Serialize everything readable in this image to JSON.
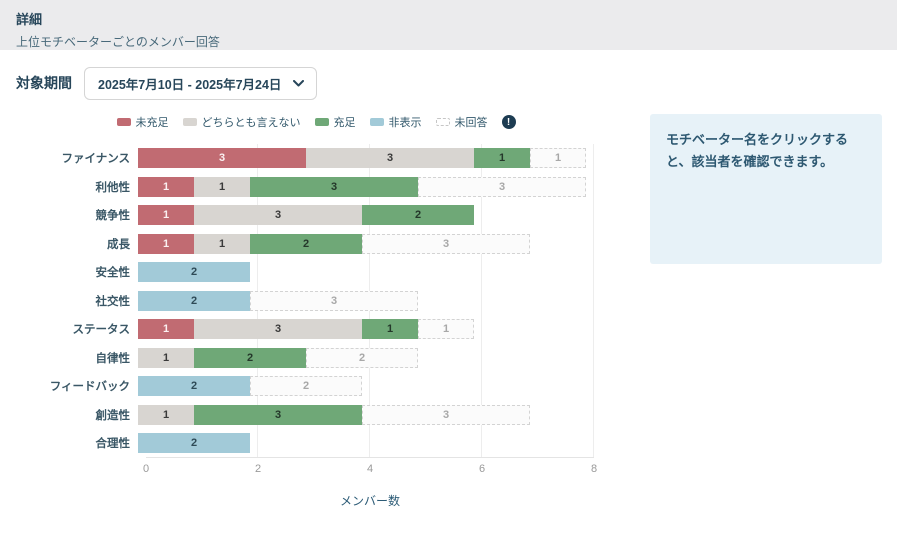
{
  "header": {
    "title": "詳細",
    "subtitle": "上位モチベーターごとのメンバー回答"
  },
  "period": {
    "label": "対象期間",
    "value": "2025年7月10日 - 2025年7月24日"
  },
  "legend": [
    {
      "key": "unmet",
      "label": "未充足",
      "color": "#c16b72"
    },
    {
      "key": "neutral",
      "label": "どちらとも言えない",
      "color": "#d8d5d1"
    },
    {
      "key": "met",
      "label": "充足",
      "color": "#6fa877"
    },
    {
      "key": "hidden",
      "label": "非表示",
      "color": "#a2cad8"
    },
    {
      "key": "noanswer",
      "label": "未回答",
      "color": "#fbfbfb",
      "border": "dashed"
    }
  ],
  "legend_info": {
    "icon_glyph": "!"
  },
  "chart_data": {
    "type": "bar",
    "orientation": "horizontal",
    "stacked": true,
    "categories": [
      "ファイナンス",
      "利他性",
      "競争性",
      "成長",
      "安全性",
      "社交性",
      "ステータス",
      "自律性",
      "フィードバック",
      "創造性",
      "合理性"
    ],
    "series": [
      {
        "key": "unmet",
        "name": "未充足",
        "values": [
          3,
          1,
          1,
          1,
          0,
          0,
          1,
          0,
          0,
          0,
          0
        ]
      },
      {
        "key": "neutral",
        "name": "どちらとも言えない",
        "values": [
          3,
          1,
          3,
          1,
          0,
          0,
          3,
          1,
          0,
          1,
          0
        ]
      },
      {
        "key": "met",
        "name": "充足",
        "values": [
          1,
          3,
          2,
          2,
          0,
          0,
          1,
          2,
          0,
          3,
          0
        ]
      },
      {
        "key": "hidden",
        "name": "非表示",
        "values": [
          0,
          0,
          0,
          0,
          2,
          2,
          0,
          0,
          2,
          0,
          2
        ]
      },
      {
        "key": "noanswer",
        "name": "未回答",
        "values": [
          1,
          3,
          0,
          3,
          0,
          3,
          1,
          2,
          2,
          3,
          0
        ]
      }
    ],
    "xlabel": "メンバー数",
    "xlim": [
      0,
      8
    ],
    "xticks": [
      0,
      2,
      4,
      6,
      8
    ],
    "grid": true,
    "legend_position": "top"
  },
  "aside": {
    "text": "モチベーター名をクリックすると、該当者を確認できます。"
  },
  "colors": {
    "header_bg": "#ebebed",
    "text_dark": "#27465a",
    "aside_bg": "#e7f2f8",
    "aside_text": "#2d5871",
    "info_icon_bg": "#1d3c52",
    "gridline": "#ededed",
    "tick_text": "#9a9a9a"
  }
}
